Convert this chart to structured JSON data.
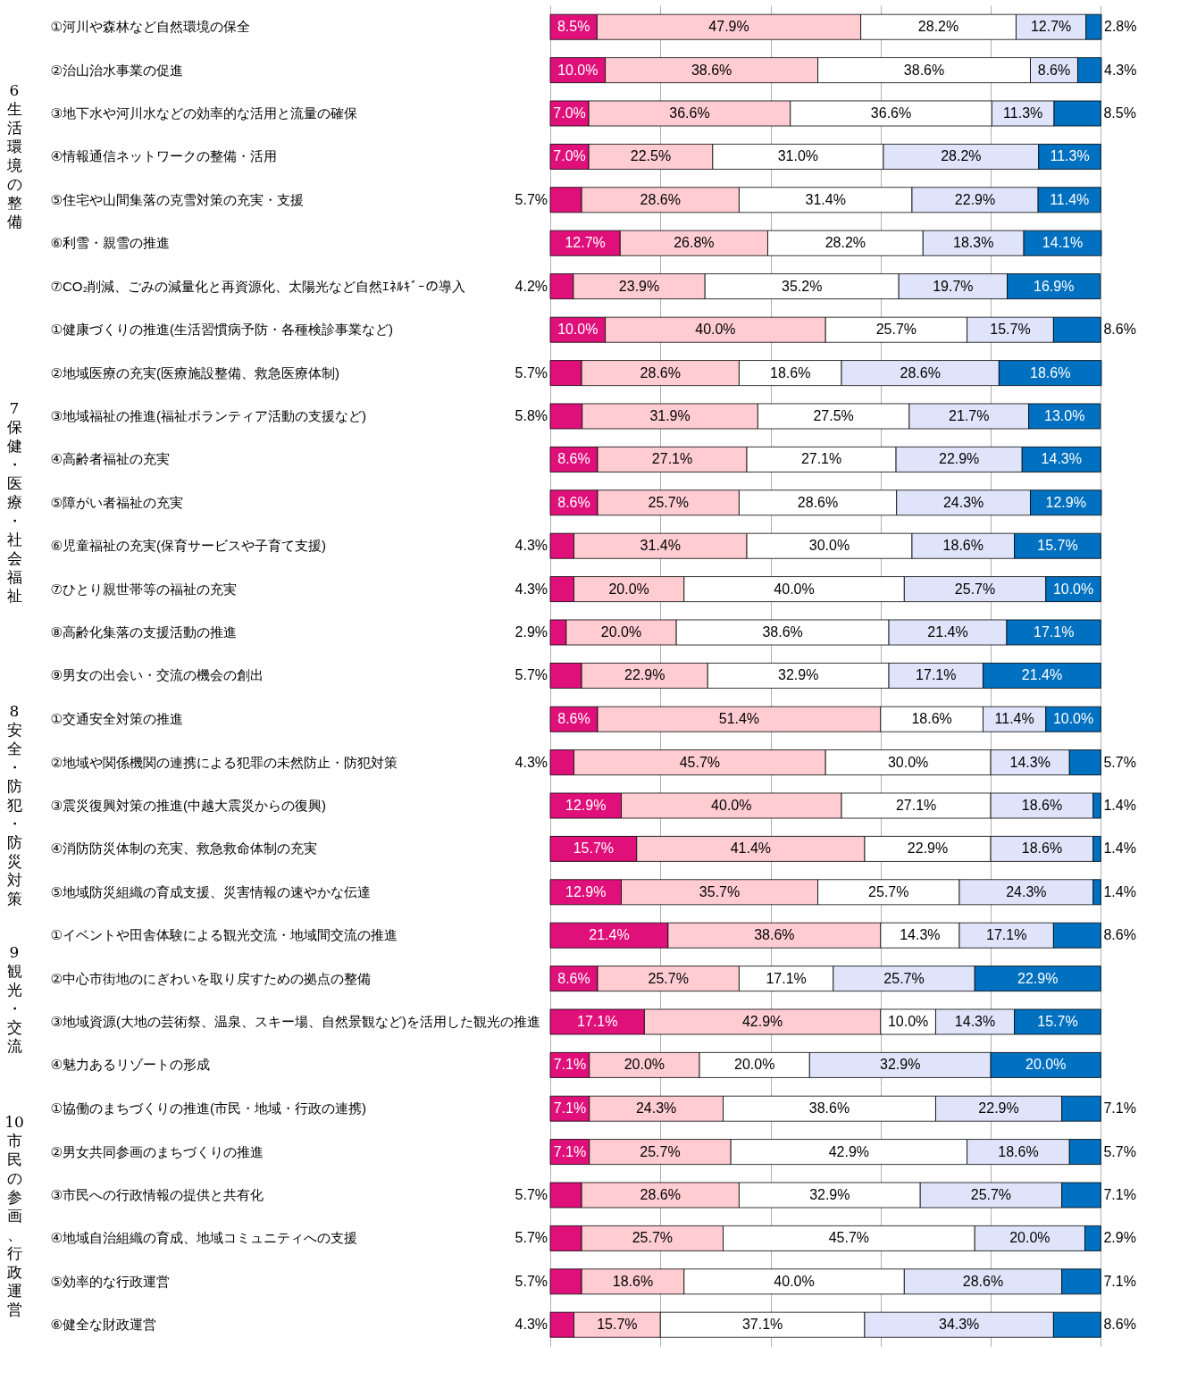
{
  "chart_data": [
    {
      "type": "bar",
      "orientation": "horizontal",
      "stacked": true,
      "ylabel": "6 生活環境の整備",
      "categories": [
        "①河川や森林など自然環境の保全",
        "②治山治水事業の促進",
        "③地下水や河川水などの効率的な活用と流量の確保",
        "④情報通信ネットワークの整備・活用",
        "⑤住宅や山間集落の克雪対策の充実・支援",
        "⑥利雪・親雪の推進",
        "⑦CO₂削減、ごみの減量化と再資源化、太陽光など自然ｴﾈﾙｷﾞｰの導入"
      ],
      "series": [
        {
          "color": "#e0107a",
          "values": [
            8.5,
            10.0,
            7.0,
            7.0,
            5.7,
            12.7,
            4.2
          ],
          "value_labels": [
            "8.5%",
            "10.0%",
            "7.0%",
            "7.0%",
            "5.7%",
            "12.7%",
            "4.2%"
          ]
        },
        {
          "color": "#ffccd2",
          "values": [
            47.9,
            38.6,
            36.6,
            22.5,
            28.6,
            26.8,
            23.9
          ],
          "value_labels": [
            "47.9%",
            "38.6%",
            "36.6%",
            "22.5%",
            "28.6%",
            "26.8%",
            "23.9%"
          ]
        },
        {
          "color": "#ffffff",
          "values": [
            28.2,
            38.6,
            36.6,
            31.0,
            31.4,
            28.2,
            35.2
          ],
          "value_labels": [
            "28.2%",
            "38.6%",
            "36.6%",
            "31.0%",
            "31.4%",
            "28.2%",
            "35.2%"
          ]
        },
        {
          "color": "#dfe4fa",
          "values": [
            12.7,
            8.6,
            11.3,
            28.2,
            22.9,
            18.3,
            19.7
          ],
          "value_labels": [
            "12.7%",
            "8.6%",
            "11.3%",
            "28.2%",
            "22.9%",
            "18.3%",
            "19.7%"
          ]
        },
        {
          "color": "#0070c0",
          "values": [
            2.8,
            4.3,
            8.5,
            11.3,
            11.4,
            14.1,
            16.9
          ],
          "value_labels": [
            "2.8%",
            "4.3%",
            "8.5%",
            "11.3%",
            "11.4%",
            "14.1%",
            "16.9%"
          ]
        }
      ],
      "xlim": [
        0,
        100.1
      ],
      "xticks": [
        {
          "value": 0,
          "label": null
        },
        {
          "value": 20,
          "label": null
        },
        {
          "value": 40,
          "label": null
        },
        {
          "value": 60,
          "label": null
        },
        {
          "value": 80,
          "label": null
        },
        {
          "value": 100,
          "label": null
        }
      ],
      "grid": "x",
      "tick_labels": "y",
      "legend": false
    },
    {
      "type": "bar",
      "orientation": "horizontal",
      "stacked": true,
      "ylabel": "7 保健・医療・社会福祉",
      "categories": [
        "①健康づくりの推進(生活習慣病予防・各種検診事業など)",
        "②地域医療の充実(医療施設整備、救急医療体制)",
        "③地域福祉の推進(福祉ボランティア活動の支援など)",
        "④高齢者福祉の充実",
        "⑤障がい者福祉の充実",
        "⑥児童福祉の充実(保育サービスや子育て支援)",
        "⑦ひとり親世帯等の福祉の充実",
        "⑧高齢化集落の支援活動の推進",
        "⑨男女の出会い・交流の機会の創出"
      ],
      "series": [
        {
          "color": "#e0107a",
          "values": [
            10.0,
            5.7,
            5.8,
            8.6,
            8.6,
            4.3,
            4.3,
            2.9,
            5.7
          ],
          "value_labels": [
            "10.0%",
            "5.7%",
            "5.8%",
            "8.6%",
            "8.6%",
            "4.3%",
            "4.3%",
            "2.9%",
            "5.7%"
          ]
        },
        {
          "color": "#ffccd2",
          "values": [
            40.0,
            28.6,
            31.9,
            27.1,
            25.7,
            31.4,
            20.0,
            20.0,
            22.9
          ],
          "value_labels": [
            "40.0%",
            "28.6%",
            "31.9%",
            "27.1%",
            "25.7%",
            "31.4%",
            "20.0%",
            "20.0%",
            "22.9%"
          ]
        },
        {
          "color": "#ffffff",
          "values": [
            25.7,
            18.6,
            27.5,
            27.1,
            28.6,
            30.0,
            40.0,
            38.6,
            32.9
          ],
          "value_labels": [
            "25.7%",
            "18.6%",
            "27.5%",
            "27.1%",
            "28.6%",
            "30.0%",
            "40.0%",
            "38.6%",
            "32.9%"
          ]
        },
        {
          "color": "#dfe4fa",
          "values": [
            15.7,
            28.6,
            21.7,
            22.9,
            24.3,
            18.6,
            25.7,
            21.4,
            17.1
          ],
          "value_labels": [
            "15.7%",
            "28.6%",
            "21.7%",
            "22.9%",
            "24.3%",
            "18.6%",
            "25.7%",
            "21.4%",
            "17.1%"
          ]
        },
        {
          "color": "#0070c0",
          "values": [
            8.6,
            18.6,
            13.0,
            14.3,
            12.9,
            15.7,
            10.0,
            17.1,
            21.4
          ],
          "value_labels": [
            "8.6%",
            "18.6%",
            "13.0%",
            "14.3%",
            "12.9%",
            "15.7%",
            "10.0%",
            "17.1%",
            "21.4%"
          ]
        }
      ],
      "xlim": [
        0,
        100.1
      ],
      "xticks": [
        {
          "value": 0,
          "label": null
        },
        {
          "value": 20,
          "label": null
        },
        {
          "value": 40,
          "label": null
        },
        {
          "value": 60,
          "label": null
        },
        {
          "value": 80,
          "label": null
        },
        {
          "value": 100,
          "label": null
        }
      ],
      "grid": "x",
      "tick_labels": "y",
      "legend": false
    },
    {
      "type": "bar",
      "orientation": "horizontal",
      "stacked": true,
      "ylabel": "8 安全・防犯・防災対策",
      "categories": [
        "①交通安全対策の推進",
        "②地域や関係機関の連携による犯罪の未然防止・防犯対策",
        "③震災復興対策の推進(中越大震災からの復興)",
        "④消防防災体制の充実、救急救命体制の充実",
        "⑤地域防災組織の育成支援、災害情報の速やかな伝達"
      ],
      "series": [
        {
          "color": "#e0107a",
          "values": [
            8.6,
            4.3,
            12.9,
            15.7,
            12.9
          ],
          "value_labels": [
            "8.6%",
            "4.3%",
            "12.9%",
            "15.7%",
            "12.9%"
          ]
        },
        {
          "color": "#ffccd2",
          "values": [
            51.4,
            45.7,
            40.0,
            41.4,
            35.7
          ],
          "value_labels": [
            "51.4%",
            "45.7%",
            "40.0%",
            "41.4%",
            "35.7%"
          ]
        },
        {
          "color": "#ffffff",
          "values": [
            18.6,
            30.0,
            27.1,
            22.9,
            25.7
          ],
          "value_labels": [
            "18.6%",
            "30.0%",
            "27.1%",
            "22.9%",
            "25.7%"
          ]
        },
        {
          "color": "#dfe4fa",
          "values": [
            11.4,
            14.3,
            18.6,
            18.6,
            24.3
          ],
          "value_labels": [
            "11.4%",
            "14.3%",
            "18.6%",
            "18.6%",
            "24.3%"
          ]
        },
        {
          "color": "#0070c0",
          "values": [
            10.0,
            5.7,
            1.4,
            1.4,
            1.4
          ],
          "value_labels": [
            "10.0%",
            "5.7%",
            "1.4%",
            "1.4%",
            "1.4%"
          ]
        }
      ],
      "xlim": [
        0,
        100.1
      ],
      "xticks": [
        {
          "value": 0,
          "label": null
        },
        {
          "value": 20,
          "label": null
        },
        {
          "value": 40,
          "label": null
        },
        {
          "value": 60,
          "label": null
        },
        {
          "value": 80,
          "label": null
        },
        {
          "value": 100,
          "label": null
        }
      ],
      "grid": "x",
      "tick_labels": "y",
      "legend": false
    },
    {
      "type": "bar",
      "orientation": "horizontal",
      "stacked": true,
      "ylabel": "9 観光・交流",
      "categories": [
        "①イベントや田舎体験による観光交流・地域間交流の推進",
        "②中心市街地のにぎわいを取り戻すための拠点の整備",
        "③地域資源(大地の芸術祭、温泉、スキー場、自然景観など)を活用した観光の推進",
        "④魅力あるリゾートの形成"
      ],
      "series": [
        {
          "color": "#e0107a",
          "values": [
            21.4,
            8.6,
            17.1,
            7.1
          ],
          "value_labels": [
            "21.4%",
            "8.6%",
            "17.1%",
            "7.1%"
          ]
        },
        {
          "color": "#ffccd2",
          "values": [
            38.6,
            25.7,
            42.9,
            20.0
          ],
          "value_labels": [
            "38.6%",
            "25.7%",
            "42.9%",
            "20.0%"
          ]
        },
        {
          "color": "#ffffff",
          "values": [
            14.3,
            17.1,
            10.0,
            20.0
          ],
          "value_labels": [
            "14.3%",
            "17.1%",
            "10.0%",
            "20.0%"
          ]
        },
        {
          "color": "#dfe4fa",
          "values": [
            17.1,
            25.7,
            14.3,
            32.9
          ],
          "value_labels": [
            "17.1%",
            "25.7%",
            "14.3%",
            "32.9%"
          ]
        },
        {
          "color": "#0070c0",
          "values": [
            8.6,
            22.9,
            15.7,
            20.0
          ],
          "value_labels": [
            "8.6%",
            "22.9%",
            "15.7%",
            "20.0%"
          ]
        }
      ],
      "xlim": [
        0,
        100.1
      ],
      "xticks": [
        {
          "value": 0,
          "label": null
        },
        {
          "value": 20,
          "label": null
        },
        {
          "value": 40,
          "label": null
        },
        {
          "value": 60,
          "label": null
        },
        {
          "value": 80,
          "label": null
        },
        {
          "value": 100,
          "label": null
        }
      ],
      "grid": "x",
      "tick_labels": "y",
      "legend": false
    },
    {
      "type": "bar",
      "orientation": "horizontal",
      "stacked": true,
      "ylabel": "10 市民の参画、行政運営",
      "categories": [
        "①協働のまちづくりの推進(市民・地域・行政の連携)",
        "②男女共同参画のまちづくりの推進",
        "③市民への行政情報の提供と共有化",
        "④地域自治組織の育成、地域コミュニティへの支援",
        "⑤効率的な行政運営",
        "⑥健全な財政運営"
      ],
      "series": [
        {
          "color": "#e0107a",
          "values": [
            7.1,
            7.1,
            5.7,
            5.7,
            5.7,
            4.3
          ],
          "value_labels": [
            "7.1%",
            "7.1%",
            "5.7%",
            "5.7%",
            "5.7%",
            "4.3%"
          ]
        },
        {
          "color": "#ffccd2",
          "values": [
            24.3,
            25.7,
            28.6,
            25.7,
            18.6,
            15.7
          ],
          "value_labels": [
            "24.3%",
            "25.7%",
            "28.6%",
            "25.7%",
            "18.6%",
            "15.7%"
          ]
        },
        {
          "color": "#ffffff",
          "values": [
            38.6,
            42.9,
            32.9,
            45.7,
            40.0,
            37.1
          ],
          "value_labels": [
            "38.6%",
            "42.9%",
            "32.9%",
            "45.7%",
            "40.0%",
            "37.1%"
          ]
        },
        {
          "color": "#dfe4fa",
          "values": [
            22.9,
            18.6,
            25.7,
            20.0,
            28.6,
            34.3
          ],
          "value_labels": [
            "22.9%",
            "18.6%",
            "25.7%",
            "20.0%",
            "28.6%",
            "34.3%"
          ]
        },
        {
          "color": "#0070c0",
          "values": [
            7.1,
            5.7,
            7.1,
            2.9,
            7.1,
            8.6
          ],
          "value_labels": [
            "7.1%",
            "5.7%",
            "7.1%",
            "2.9%",
            "7.1%",
            "8.6%"
          ]
        }
      ],
      "xlim": [
        0,
        100.1
      ],
      "xticks": [
        {
          "value": 0,
          "label": null
        },
        {
          "value": 20,
          "label": null
        },
        {
          "value": 40,
          "label": null
        },
        {
          "value": 60,
          "label": null
        },
        {
          "value": 80,
          "label": null
        },
        {
          "value": 100,
          "label": null
        }
      ],
      "grid": "x",
      "tick_labels": "y",
      "legend": false
    }
  ]
}
